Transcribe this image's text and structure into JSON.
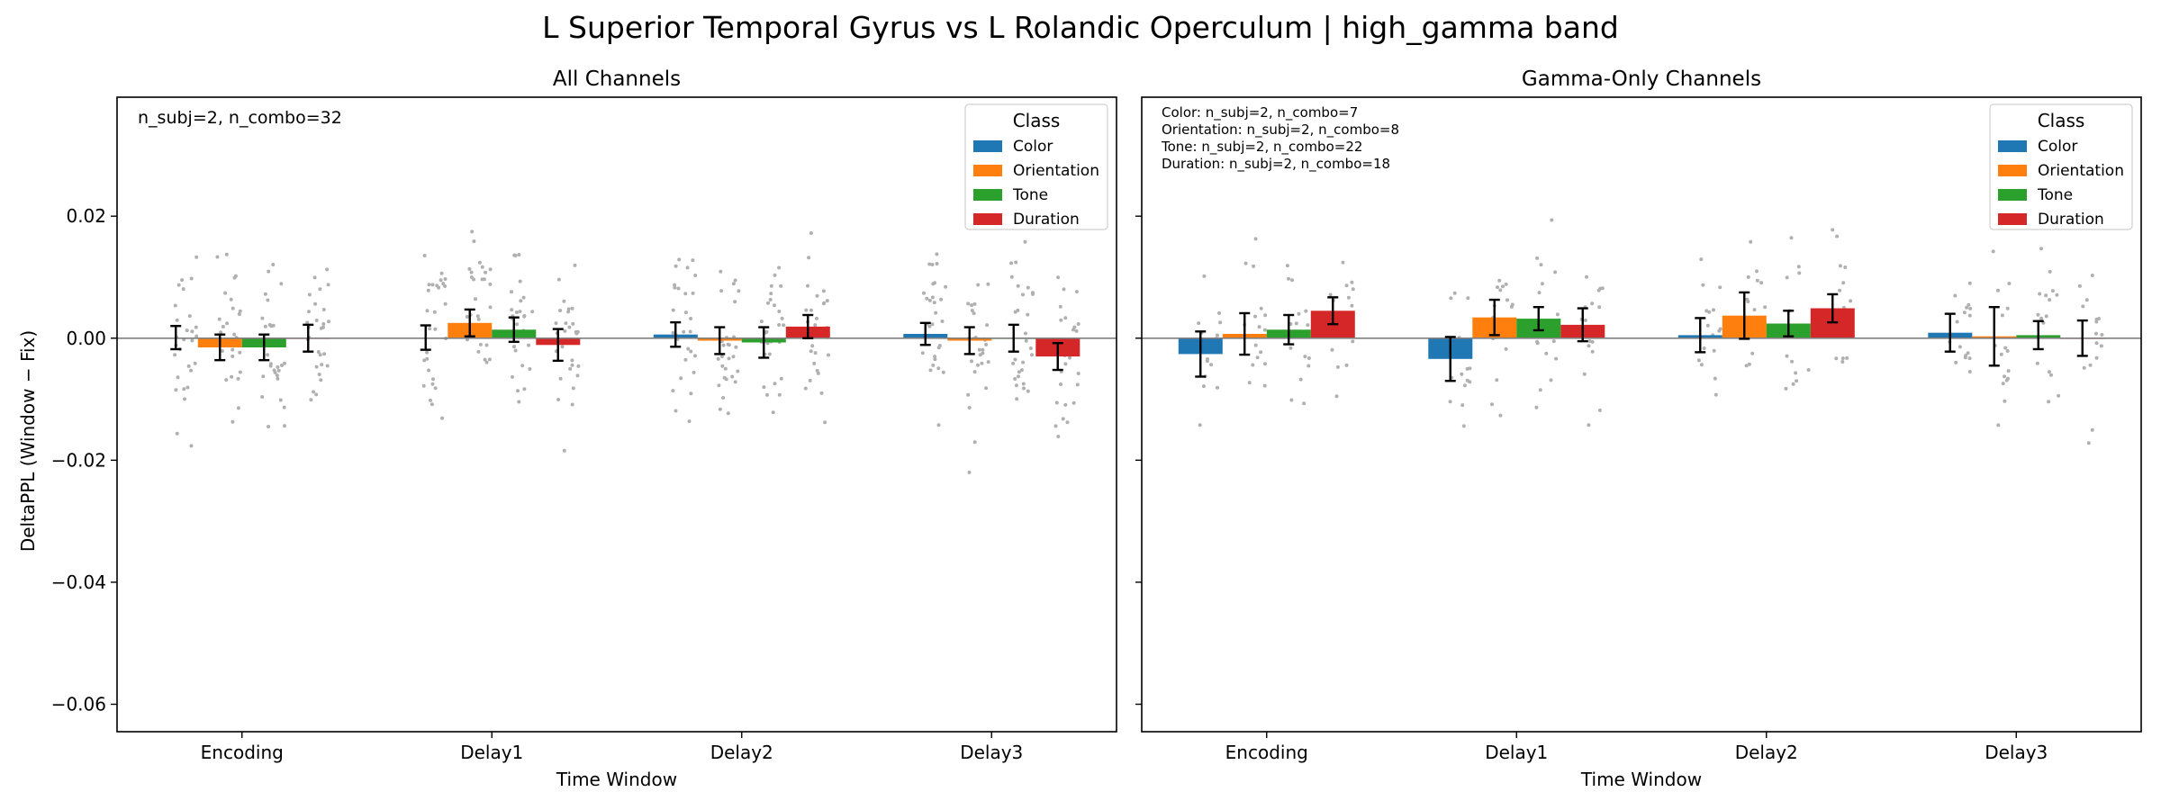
{
  "figure_title": "L Superior Temporal Gyrus vs L Rolandic Operculum  |  high_gamma band",
  "ylabel": "DeltaPPL (Window − Fix)",
  "colors": {
    "Color": "#1f77b4",
    "Orientation": "#ff7f0e",
    "Tone": "#2ca02c",
    "Duration": "#d62728",
    "scatter": "#b0b0b0",
    "zero_line": "#808080"
  },
  "chart_data": [
    {
      "type": "bar",
      "title": "All Channels",
      "xlabel": "Time Window",
      "ylim": [
        -0.0645,
        0.0395
      ],
      "yticks": [
        0.02,
        0.0,
        -0.02,
        -0.04,
        -0.06
      ],
      "ytick_labels": [
        "0.02",
        "0.00",
        "−0.02",
        "−0.04",
        "−0.06"
      ],
      "categories": [
        "Encoding",
        "Delay1",
        "Delay2",
        "Delay3"
      ],
      "legend": {
        "title": "Class",
        "placement": "top-right",
        "entries": [
          "Color",
          "Orientation",
          "Tone",
          "Duration"
        ]
      },
      "annotation": [
        "n_subj=2, n_combo=32"
      ],
      "series": [
        {
          "name": "Color",
          "values": [
            0.0001,
            0.0001,
            0.0006,
            0.0007
          ],
          "err": [
            0.0019,
            0.002,
            0.002,
            0.0018
          ]
        },
        {
          "name": "Orientation",
          "values": [
            -0.0015,
            0.0025,
            -0.0004,
            -0.0004
          ],
          "err": [
            0.0021,
            0.0022,
            0.0022,
            0.0022
          ]
        },
        {
          "name": "Tone",
          "values": [
            -0.0015,
            0.0014,
            -0.0007,
            0.0
          ],
          "err": [
            0.0021,
            0.002,
            0.0025,
            0.0022
          ]
        },
        {
          "name": "Duration",
          "values": [
            0.0,
            -0.0011,
            0.0019,
            -0.003
          ],
          "err": [
            0.0022,
            0.0026,
            0.0019,
            0.0022
          ]
        }
      ]
    },
    {
      "type": "bar",
      "title": "Gamma-Only Channels",
      "xlabel": "Time Window",
      "ylim": [
        -0.0645,
        0.0395
      ],
      "yticks": [
        0.02,
        0.0,
        -0.02,
        -0.04,
        -0.06
      ],
      "ytick_labels": [
        "",
        "",
        "",
        "",
        ""
      ],
      "categories": [
        "Encoding",
        "Delay1",
        "Delay2",
        "Delay3"
      ],
      "legend": {
        "title": "Class",
        "placement": "top-right",
        "entries": [
          "Color",
          "Orientation",
          "Tone",
          "Duration"
        ]
      },
      "annotation": [
        "Color: n_subj=2, n_combo=7",
        "Orientation: n_subj=2, n_combo=8",
        "Tone: n_subj=2, n_combo=22",
        "Duration: n_subj=2, n_combo=18"
      ],
      "series": [
        {
          "name": "Color",
          "values": [
            -0.0026,
            -0.0034,
            0.0005,
            0.0009
          ],
          "err": [
            0.0037,
            0.0036,
            0.0028,
            0.0031
          ]
        },
        {
          "name": "Orientation",
          "values": [
            0.0007,
            0.0034,
            0.0037,
            0.0003
          ],
          "err": [
            0.0034,
            0.0029,
            0.0038,
            0.0048
          ]
        },
        {
          "name": "Tone",
          "values": [
            0.0014,
            0.0032,
            0.0024,
            0.0005
          ],
          "err": [
            0.0024,
            0.0019,
            0.0021,
            0.0023
          ]
        },
        {
          "name": "Duration",
          "values": [
            0.0045,
            0.0022,
            0.0049,
            0.0
          ],
          "err": [
            0.0022,
            0.0027,
            0.0023,
            0.0029
          ]
        }
      ]
    }
  ]
}
